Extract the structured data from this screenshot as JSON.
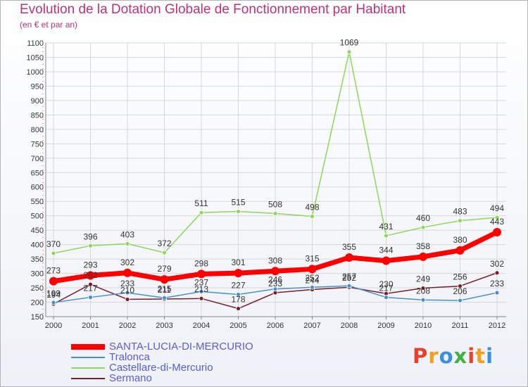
{
  "title": "Evolution de la Dotation Globale de Fonctionnement par Habitant",
  "subtitle": "(en € et par an)",
  "logo": {
    "text": "Proxiti",
    "colors": [
      "#e8402b",
      "#f0a020",
      "#3c8ee0",
      "#40b040",
      "#e8402b",
      "#f0a020",
      "#3c8ee0"
    ]
  },
  "chart_data": {
    "type": "line",
    "x": [
      "2000",
      "2001",
      "2002",
      "2003",
      "2004",
      "2005",
      "2006",
      "2007",
      "2008",
      "2009",
      "2010",
      "2011",
      "2012"
    ],
    "ylim": [
      150,
      1100
    ],
    "yticks": [
      150,
      200,
      250,
      300,
      350,
      400,
      450,
      500,
      550,
      600,
      650,
      700,
      750,
      800,
      850,
      900,
      950,
      1000,
      1050,
      1100
    ],
    "grid": true,
    "legend_position": "bottom-left",
    "series": [
      {
        "name": "SANTA-LUCIA-DI-MERCURIO",
        "color": "#ff0000",
        "values": [
          273,
          293,
          302,
          279,
          298,
          301,
          308,
          315,
          355,
          344,
          358,
          380,
          443
        ]
      },
      {
        "name": "Tralonca",
        "color": "#4a90c8",
        "values": [
          199,
          217,
          233,
          215,
          237,
          227,
          246,
          252,
          257,
          217,
          208,
          206,
          233
        ]
      },
      {
        "name": "Castellare-di-Mercurio",
        "color": "#8fd65a",
        "values": [
          370,
          396,
          403,
          372,
          511,
          515,
          508,
          498,
          1069,
          431,
          460,
          483,
          494
        ]
      },
      {
        "name": "Sermano",
        "color": "#7a1f2a",
        "values": [
          194,
          262,
          210,
          211,
          213,
          178,
          233,
          244,
          252,
          230,
          249,
          256,
          302
        ]
      }
    ]
  }
}
